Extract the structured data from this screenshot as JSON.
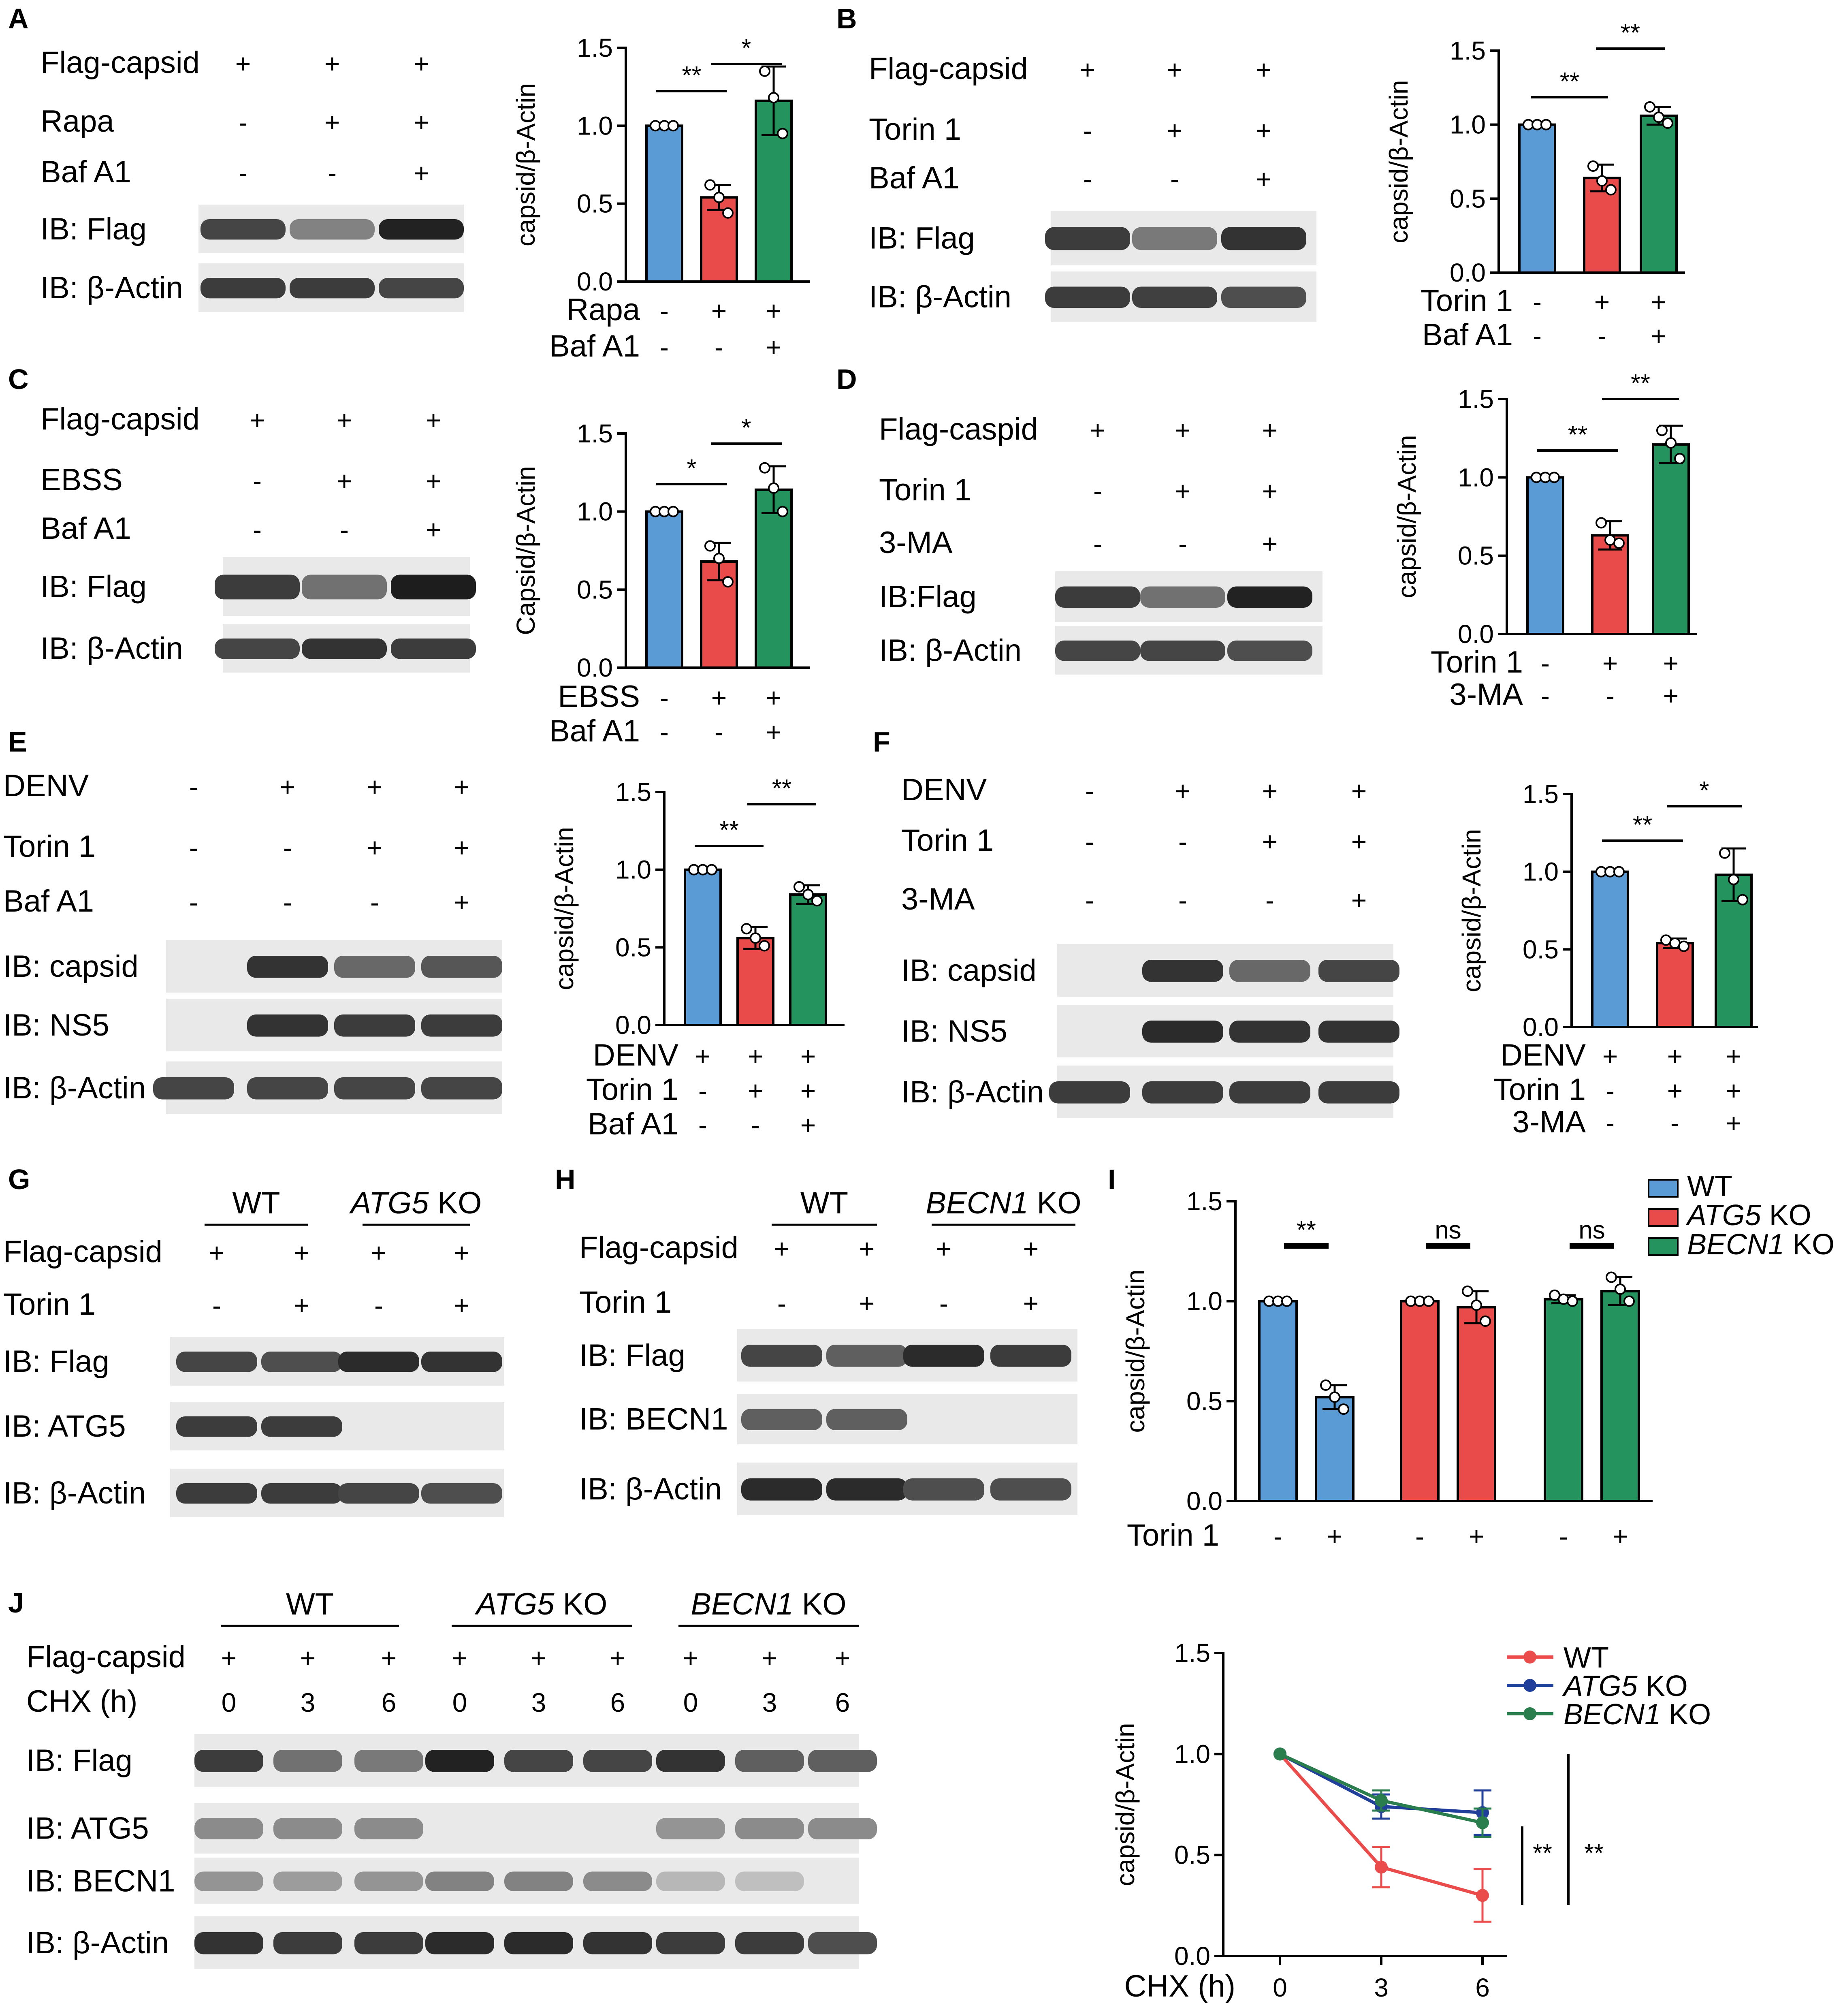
{
  "colors": {
    "blue": "#5b9bd5",
    "red": "#e94b4b",
    "green": "#24935d",
    "line_red": "#ea4b4b",
    "line_blue": "#1f3f9a",
    "line_green": "#2a7d4d"
  },
  "panels": [
    {
      "letter": "A",
      "blot": {
        "rows": [
          {
            "label": "Flag-capsid",
            "signs": [
              "+",
              "+",
              "+"
            ]
          },
          {
            "label": "Rapa",
            "signs": [
              "-",
              "+",
              "+"
            ]
          },
          {
            "label": "Baf A1",
            "signs": [
              "-",
              "-",
              "+"
            ]
          }
        ],
        "bands": [
          "IB: Flag",
          "IB: β-Actin"
        ]
      }
    },
    {
      "letter": "B",
      "blot": {
        "rows": [
          {
            "label": "Flag-capsid",
            "signs": [
              "+",
              "+",
              "+"
            ]
          },
          {
            "label": "Torin 1",
            "signs": [
              "-",
              "+",
              "+"
            ]
          },
          {
            "label": "Baf A1",
            "signs": [
              "-",
              "-",
              "+"
            ]
          }
        ],
        "bands": [
          "IB: Flag",
          "IB: β-Actin"
        ]
      }
    },
    {
      "letter": "C",
      "blot": {
        "rows": [
          {
            "label": "Flag-capsid",
            "signs": [
              "+",
              "+",
              "+"
            ]
          },
          {
            "label": "EBSS",
            "signs": [
              "-",
              "+",
              "+"
            ]
          },
          {
            "label": "Baf A1",
            "signs": [
              "-",
              "-",
              "+"
            ]
          }
        ],
        "bands": [
          "IB: Flag",
          "IB: β-Actin"
        ]
      }
    },
    {
      "letter": "D",
      "blot": {
        "rows": [
          {
            "label": "Flag-caspid",
            "signs": [
              "+",
              "+",
              "+"
            ]
          },
          {
            "label": "Torin 1",
            "signs": [
              "-",
              "+",
              "+"
            ]
          },
          {
            "label": "3-MA",
            "signs": [
              "-",
              "-",
              "+"
            ]
          }
        ],
        "bands": [
          "IB:Flag",
          "IB: β-Actin"
        ]
      }
    },
    {
      "letter": "E",
      "blot": {
        "rows": [
          {
            "label": "DENV",
            "signs": [
              "-",
              "+",
              "+",
              "+"
            ]
          },
          {
            "label": "Torin 1",
            "signs": [
              "-",
              "-",
              "+",
              "+"
            ]
          },
          {
            "label": "Baf A1",
            "signs": [
              "-",
              "-",
              "-",
              "+"
            ]
          }
        ],
        "bands": [
          "IB: capsid",
          "IB: NS5",
          "IB: β-Actin"
        ]
      }
    },
    {
      "letter": "F",
      "blot": {
        "rows": [
          {
            "label": "DENV",
            "signs": [
              "-",
              "+",
              "+",
              "+"
            ]
          },
          {
            "label": "Torin 1",
            "signs": [
              "-",
              "-",
              "+",
              "+"
            ]
          },
          {
            "label": "3-MA",
            "signs": [
              "-",
              "-",
              "-",
              "+"
            ]
          }
        ],
        "bands": [
          "IB: capsid",
          "IB: NS5",
          "IB: β-Actin"
        ]
      }
    },
    {
      "letter": "G",
      "blot": {
        "groups": [
          {
            "name": "WT",
            "italic": ""
          },
          {
            "name": " KO",
            "italic": "ATG5"
          }
        ],
        "rows": [
          {
            "label": "Flag-capsid",
            "signs": [
              "+",
              "+",
              "+",
              "+"
            ]
          },
          {
            "label": "Torin 1",
            "signs": [
              "-",
              "+",
              "-",
              "+"
            ]
          }
        ],
        "bands": [
          "IB: Flag",
          "IB: ATG5",
          "IB: β-Actin"
        ]
      }
    },
    {
      "letter": "H",
      "blot": {
        "groups": [
          {
            "name": "WT",
            "italic": ""
          },
          {
            "name": " KO",
            "italic": "BECN1"
          }
        ],
        "rows": [
          {
            "label": "Flag-capsid",
            "signs": [
              "+",
              "+",
              "+",
              "+"
            ]
          },
          {
            "label": "Torin 1",
            "signs": [
              "-",
              "+",
              "-",
              "+"
            ]
          }
        ],
        "bands": [
          "IB: Flag",
          "IB: BECN1",
          "IB: β-Actin"
        ]
      }
    },
    {
      "letter": "I"
    },
    {
      "letter": "J",
      "blot": {
        "groups": [
          {
            "name": "WT",
            "italic": ""
          },
          {
            "name": " KO",
            "italic": "ATG5"
          },
          {
            "name": " KO",
            "italic": "BECN1"
          }
        ],
        "rows": [
          {
            "label": "Flag-capsid",
            "signs": [
              "+",
              "+",
              "+",
              "+",
              "+",
              "+",
              "+",
              "+",
              "+"
            ]
          },
          {
            "label": "CHX (h)",
            "signs": [
              "0",
              "3",
              "6",
              "0",
              "3",
              "6",
              "0",
              "3",
              "6"
            ]
          }
        ],
        "bands": [
          "IB: Flag",
          "IB: ATG5",
          "IB: BECN1",
          "IB: β-Actin"
        ]
      }
    }
  ],
  "chart_data": [
    {
      "panel": "A",
      "type": "bar",
      "ylabel": "capsid/β-Actin",
      "ylim": [
        0,
        1.5
      ],
      "yticks": [
        "0.0",
        "0.5",
        "1.0",
        "1.5"
      ],
      "values": [
        1.0,
        0.54,
        1.16
      ],
      "errors": [
        0,
        0.08,
        0.22
      ],
      "points": [
        [
          1.0,
          1.0,
          1.0
        ],
        [
          0.62,
          0.54,
          0.44
        ],
        [
          1.35,
          1.18,
          0.95
        ]
      ],
      "rows": [
        {
          "label": "Rapa",
          "signs": [
            "-",
            "+",
            "+"
          ]
        },
        {
          "label": "Baf A1",
          "signs": [
            "-",
            "-",
            "+"
          ]
        }
      ],
      "comparisons": [
        {
          "from": 0,
          "to": 1,
          "label": "**"
        },
        {
          "from": 1,
          "to": 2,
          "label": "*"
        }
      ]
    },
    {
      "panel": "B",
      "type": "bar",
      "ylabel": "capsid/β-Actin",
      "ylim": [
        0,
        1.5
      ],
      "yticks": [
        "0.0",
        "0.5",
        "1.0",
        "1.5"
      ],
      "values": [
        1.0,
        0.64,
        1.06
      ],
      "errors": [
        0,
        0.09,
        0.06
      ],
      "points": [
        [
          1.0,
          1.0,
          1.0
        ],
        [
          0.72,
          0.62,
          0.56
        ],
        [
          1.12,
          1.05,
          1.01
        ]
      ],
      "rows": [
        {
          "label": "Torin 1",
          "signs": [
            "-",
            "+",
            "+"
          ]
        },
        {
          "label": "Baf A1",
          "signs": [
            "-",
            "-",
            "+"
          ]
        }
      ],
      "comparisons": [
        {
          "from": 0,
          "to": 1,
          "label": "**"
        },
        {
          "from": 1,
          "to": 2,
          "label": "**"
        }
      ]
    },
    {
      "panel": "C",
      "type": "bar",
      "ylabel": "Capsid/β-Actin",
      "ylim": [
        0,
        1.5
      ],
      "yticks": [
        "0.0",
        "0.5",
        "1.0",
        "1.5"
      ],
      "values": [
        1.0,
        0.68,
        1.14
      ],
      "errors": [
        0,
        0.12,
        0.15
      ],
      "points": [
        [
          1.0,
          1.0,
          1.0
        ],
        [
          0.78,
          0.7,
          0.55
        ],
        [
          1.28,
          1.15,
          1.0
        ]
      ],
      "rows": [
        {
          "label": "EBSS",
          "signs": [
            "-",
            "+",
            "+"
          ]
        },
        {
          "label": "Baf A1",
          "signs": [
            "-",
            "-",
            "+"
          ]
        }
      ],
      "comparisons": [
        {
          "from": 0,
          "to": 1,
          "label": "*"
        },
        {
          "from": 1,
          "to": 2,
          "label": "*"
        }
      ]
    },
    {
      "panel": "D",
      "type": "bar",
      "ylabel": "capsid/β-Actin",
      "ylim": [
        0,
        1.5
      ],
      "yticks": [
        "0.0",
        "0.5",
        "1.0",
        "1.5"
      ],
      "values": [
        1.0,
        0.63,
        1.21
      ],
      "errors": [
        0,
        0.09,
        0.12
      ],
      "points": [
        [
          1.0,
          1.0,
          1.0
        ],
        [
          0.71,
          0.6,
          0.58
        ],
        [
          1.3,
          1.22,
          1.12
        ]
      ],
      "rows": [
        {
          "label": "Torin 1",
          "signs": [
            "-",
            "+",
            "+"
          ]
        },
        {
          "label": "3-MA",
          "signs": [
            "-",
            "-",
            "+"
          ]
        }
      ],
      "comparisons": [
        {
          "from": 0,
          "to": 1,
          "label": "**"
        },
        {
          "from": 1,
          "to": 2,
          "label": "**"
        }
      ]
    },
    {
      "panel": "E",
      "type": "bar",
      "ylabel": "capsid/β-Actin",
      "ylim": [
        0,
        1.5
      ],
      "yticks": [
        "0.0",
        "0.5",
        "1.0",
        "1.5"
      ],
      "values": [
        1.0,
        0.56,
        0.84
      ],
      "errors": [
        0,
        0.07,
        0.06
      ],
      "points": [
        [
          1.0,
          1.0,
          1.0
        ],
        [
          0.62,
          0.56,
          0.51
        ],
        [
          0.89,
          0.84,
          0.8
        ]
      ],
      "rows": [
        {
          "label": "DENV",
          "signs": [
            "+",
            "+",
            "+"
          ]
        },
        {
          "label": "Torin 1",
          "signs": [
            "-",
            "+",
            "+"
          ]
        },
        {
          "label": "Baf A1",
          "signs": [
            "-",
            "-",
            "+"
          ]
        }
      ],
      "comparisons": [
        {
          "from": 0,
          "to": 1,
          "label": "**"
        },
        {
          "from": 1,
          "to": 2,
          "label": "**"
        }
      ]
    },
    {
      "panel": "F",
      "type": "bar",
      "ylabel": "capsid/β-Actin",
      "ylim": [
        0,
        1.5
      ],
      "yticks": [
        "0.0",
        "0.5",
        "1.0",
        "1.5"
      ],
      "values": [
        1.0,
        0.54,
        0.98
      ],
      "errors": [
        0,
        0.03,
        0.17
      ],
      "points": [
        [
          1.0,
          1.0,
          1.0
        ],
        [
          0.56,
          0.54,
          0.52
        ],
        [
          1.12,
          0.95,
          0.82
        ]
      ],
      "rows": [
        {
          "label": "DENV",
          "signs": [
            "+",
            "+",
            "+"
          ]
        },
        {
          "label": "Torin 1",
          "signs": [
            "-",
            "+",
            "+"
          ]
        },
        {
          "label": "3-MA",
          "signs": [
            "-",
            "-",
            "+"
          ]
        }
      ],
      "comparisons": [
        {
          "from": 0,
          "to": 1,
          "label": "**"
        },
        {
          "from": 1,
          "to": 2,
          "label": "*"
        }
      ]
    },
    {
      "panel": "I",
      "type": "bar",
      "ylabel": "capsid/β-Actin",
      "ylim": [
        0,
        1.5
      ],
      "yticks": [
        "0.0",
        "0.5",
        "1.0",
        "1.5"
      ],
      "groups": [
        "WT",
        "ATG5 KO",
        "BECN1 KO"
      ],
      "legend": [
        {
          "name": "WT",
          "italic": ""
        },
        {
          "name": " KO",
          "italic": "ATG5"
        },
        {
          "name": " KO",
          "italic": "BECN1"
        }
      ],
      "legend_position": "top-right",
      "values": [
        1.0,
        0.52,
        1.0,
        0.97,
        1.01,
        1.05
      ],
      "errors": [
        0,
        0.06,
        0,
        0.08,
        0.02,
        0.07
      ],
      "points": [
        [
          1.0,
          1.0,
          1.0
        ],
        [
          0.58,
          0.52,
          0.46
        ],
        [
          1.0,
          1.0,
          1.0
        ],
        [
          1.05,
          0.98,
          0.9
        ],
        [
          1.03,
          1.01,
          1.0
        ],
        [
          1.12,
          1.06,
          1.0
        ]
      ],
      "rows": [
        {
          "label": "Torin 1",
          "signs": [
            "-",
            "+",
            "-",
            "+",
            "-",
            "+"
          ]
        }
      ],
      "comparisons": [
        {
          "from": 0,
          "to": 1,
          "label": "**"
        },
        {
          "from": 2,
          "to": 3,
          "label": "ns"
        },
        {
          "from": 4,
          "to": 5,
          "label": "ns"
        }
      ]
    },
    {
      "panel": "J",
      "type": "line",
      "ylabel": "capsid/β-Actin",
      "xlabel": "CHX (h)",
      "x": [
        0,
        3,
        6
      ],
      "xticks": [
        "0",
        "3",
        "6"
      ],
      "ylim": [
        0,
        1.5
      ],
      "yticks": [
        "0.0",
        "0.5",
        "1.0",
        "1.5"
      ],
      "legend_position": "top-right",
      "series": [
        {
          "name": "WT",
          "italic": "",
          "values": [
            1.0,
            0.44,
            0.3
          ],
          "errors": [
            0,
            0.1,
            0.13
          ]
        },
        {
          "name": " KO",
          "italic": "ATG5",
          "values": [
            1.0,
            0.74,
            0.71
          ],
          "errors": [
            0,
            0.06,
            0.11
          ]
        },
        {
          "name": " KO",
          "italic": "BECN1",
          "values": [
            1.0,
            0.77,
            0.66
          ],
          "errors": [
            0,
            0.05,
            0.07
          ]
        }
      ],
      "significance": [
        "**",
        "**"
      ]
    }
  ]
}
